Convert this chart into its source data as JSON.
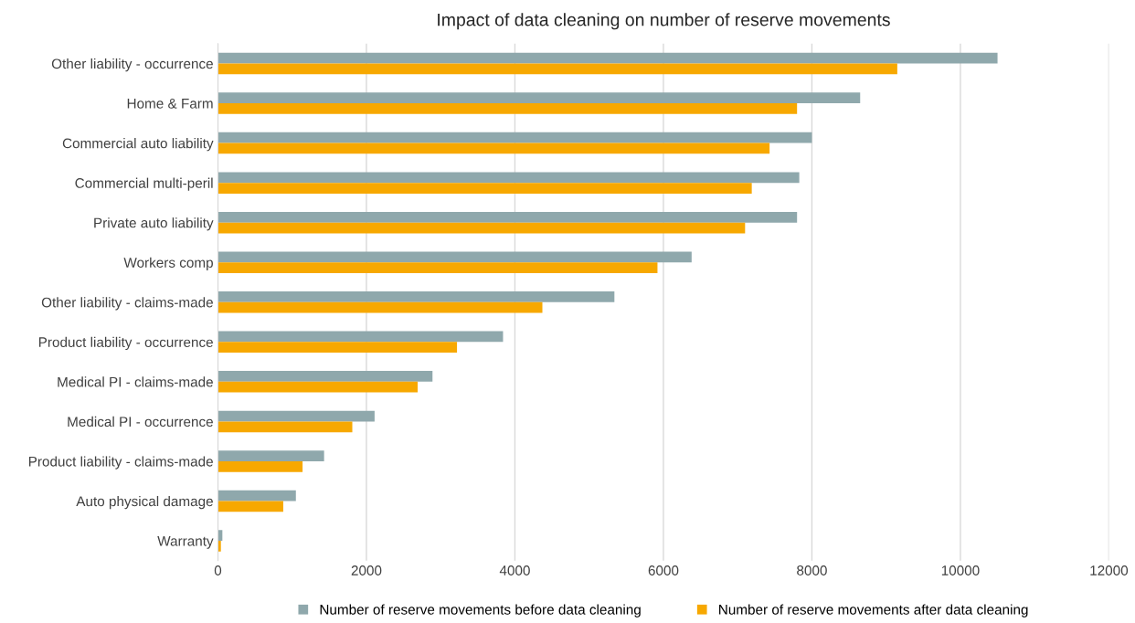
{
  "chart_data": {
    "type": "bar",
    "orientation": "horizontal",
    "title": "Impact of data cleaning on number of reserve movements",
    "categories": [
      "Other liability - occurrence",
      "Home & Farm",
      "Commercial auto liability",
      "Commercial multi-peril",
      "Private auto liability",
      "Workers comp",
      "Other liability - claims-made",
      "Product liability - occurrence",
      "Medical PI - claims-made",
      "Medical PI - occurrence",
      "Product liability - claims-made",
      "Auto physical damage",
      "Warranty"
    ],
    "series": [
      {
        "name": "Number of reserve movements before data cleaning",
        "color": "#8fa8ac",
        "values": [
          10500,
          8650,
          8000,
          7830,
          7800,
          6380,
          5340,
          3840,
          2890,
          2110,
          1430,
          1050,
          60
        ]
      },
      {
        "name": "Number of reserve movements after data cleaning",
        "color": "#f7a800",
        "values": [
          9150,
          7800,
          7430,
          7190,
          7100,
          5920,
          4370,
          3220,
          2690,
          1810,
          1140,
          880,
          40
        ]
      }
    ],
    "xlim": [
      0,
      12000
    ],
    "xticks": [
      0,
      2000,
      4000,
      6000,
      8000,
      10000,
      12000
    ],
    "grid": "x",
    "legend": "bottom"
  }
}
